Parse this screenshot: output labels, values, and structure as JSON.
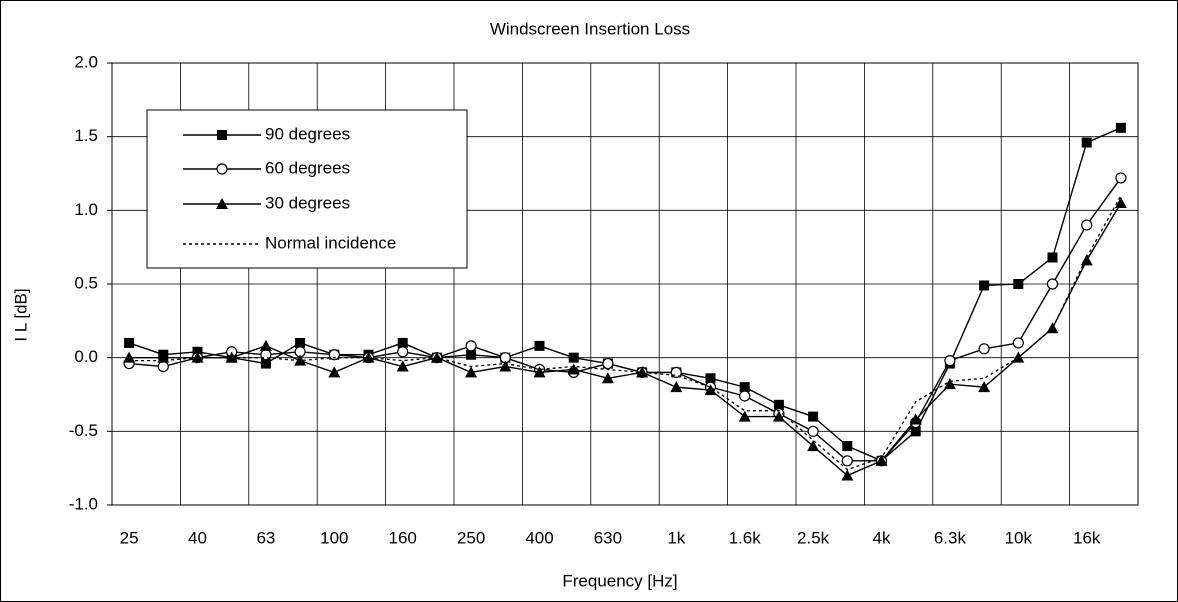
{
  "chart_data": {
    "type": "line",
    "title": "Windscreen Insertion Loss",
    "x_label": "Frequency [Hz]",
    "y_label": "I L [dB]",
    "categories": [
      "25",
      null,
      "40",
      null,
      "63",
      null,
      "100",
      null,
      "160",
      null,
      "250",
      null,
      "400",
      null,
      "630",
      null,
      "1k",
      null,
      "1.6k",
      null,
      "2.5k",
      null,
      "4k",
      null,
      "6.3k",
      null,
      "10k",
      null,
      "16k",
      null
    ],
    "series": [
      {
        "name": "90 degrees",
        "color": "#000000",
        "marker": "square",
        "dash": "solid",
        "values": [
          0.1,
          0.02,
          0.04,
          0.0,
          -0.04,
          0.1,
          0.02,
          0.02,
          0.1,
          0.0,
          0.02,
          0.0,
          0.08,
          0.0,
          -0.04,
          -0.1,
          -0.1,
          -0.14,
          -0.2,
          -0.32,
          -0.4,
          -0.6,
          -0.7,
          -0.5,
          -0.04,
          0.49,
          0.5,
          0.68,
          1.46,
          1.56
        ]
      },
      {
        "name": "60 degrees",
        "color": "#000000",
        "marker": "circle",
        "dash": "solid",
        "values": [
          -0.04,
          -0.06,
          0.0,
          0.04,
          0.02,
          0.04,
          0.02,
          0.0,
          0.04,
          0.0,
          0.08,
          0.0,
          -0.08,
          -0.1,
          -0.04,
          -0.1,
          -0.1,
          -0.2,
          -0.26,
          -0.38,
          -0.5,
          -0.7,
          -0.7,
          -0.44,
          -0.02,
          0.06,
          0.1,
          0.5,
          0.9,
          1.22
        ]
      },
      {
        "name": "30 degrees",
        "color": "#000000",
        "marker": "triangle",
        "dash": "solid",
        "values": [
          0.0,
          0.0,
          0.0,
          0.0,
          0.08,
          -0.02,
          -0.1,
          0.0,
          -0.06,
          0.0,
          -0.1,
          -0.06,
          -0.1,
          -0.08,
          -0.14,
          -0.1,
          -0.2,
          -0.22,
          -0.4,
          -0.4,
          -0.6,
          -0.8,
          -0.7,
          -0.42,
          -0.18,
          -0.2,
          0.0,
          0.2,
          0.66,
          1.05
        ]
      },
      {
        "name": "Normal incidence",
        "color": "#000000",
        "marker": "none",
        "dash": "dashed",
        "values": [
          -0.02,
          -0.02,
          0.0,
          0.0,
          0.0,
          -0.02,
          0.0,
          0.0,
          -0.02,
          0.0,
          -0.06,
          -0.04,
          -0.08,
          -0.06,
          -0.08,
          -0.1,
          -0.12,
          -0.2,
          -0.36,
          -0.36,
          -0.56,
          -0.76,
          -0.68,
          -0.3,
          -0.16,
          -0.14,
          0.0,
          0.2,
          0.68,
          1.1
        ]
      }
    ],
    "ylim": [
      -1.0,
      2.0
    ],
    "yticks": [
      {
        "value": -1.0,
        "label": "-1.0"
      },
      -0.5,
      {
        "value": 0.0,
        "label": "0.0"
      },
      0.5,
      {
        "value": 1.0,
        "label": "1.0"
      },
      1.5,
      {
        "value": 2.0,
        "label": "2.0"
      }
    ],
    "grid": true,
    "legend": "upper left"
  }
}
